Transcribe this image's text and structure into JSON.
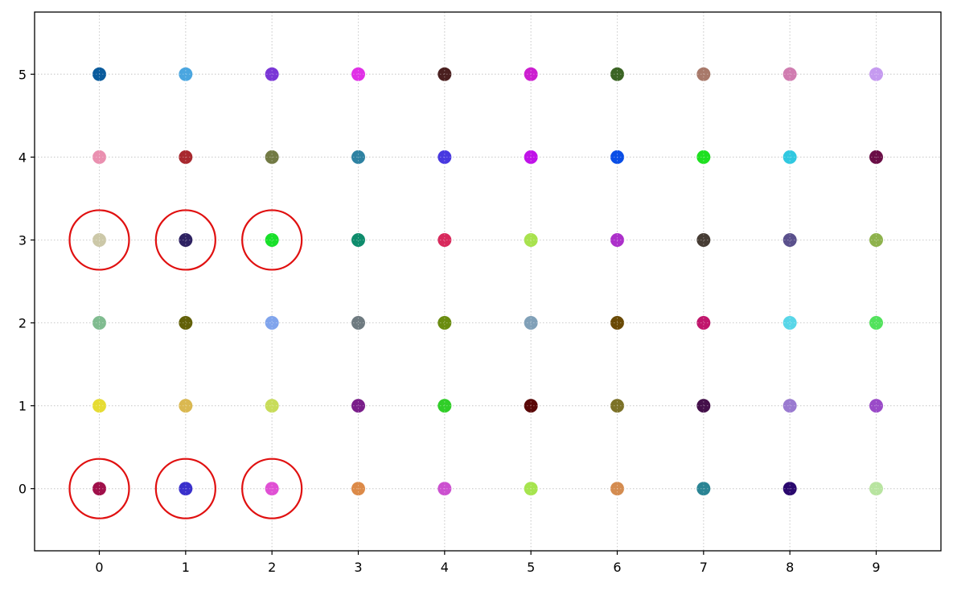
{
  "chart_data": {
    "type": "scatter",
    "title": "",
    "xlabel": "",
    "ylabel": "",
    "xlim": [
      -0.75,
      9.75
    ],
    "ylim": [
      -0.75,
      5.75
    ],
    "grid": true,
    "grid_style": "dotted",
    "x_ticks": [
      "0",
      "1",
      "2",
      "3",
      "4",
      "5",
      "6",
      "7",
      "8",
      "9"
    ],
    "y_ticks": [
      "0",
      "1",
      "2",
      "3",
      "4",
      "5"
    ],
    "highlight_color": "#e01010",
    "highlighted_points": [
      {
        "x": 0,
        "y": 3
      },
      {
        "x": 1,
        "y": 3
      },
      {
        "x": 2,
        "y": 3
      },
      {
        "x": 0,
        "y": 0
      },
      {
        "x": 1,
        "y": 0
      },
      {
        "x": 2,
        "y": 0
      }
    ],
    "rows": [
      {
        "y": 5,
        "colors": [
          "#0a5b9c",
          "#4aa6e0",
          "#7a36d6",
          "#e030e6",
          "#4a1f1f",
          "#cc1ed0",
          "#3b6424",
          "#a8796a",
          "#d07cb0",
          "#c59af0"
        ]
      },
      {
        "y": 4,
        "colors": [
          "#ea90b0",
          "#a8282e",
          "#727a44",
          "#2e82a2",
          "#4838e0",
          "#c012e8",
          "#0a4ee6",
          "#1ee020",
          "#30c8e0",
          "#6a0e46"
        ]
      },
      {
        "y": 3,
        "colors": [
          "#ccc8a8",
          "#2e2262",
          "#18e02a",
          "#0e8c6c",
          "#d8295c",
          "#a8e24e",
          "#ac30ca",
          "#463c34",
          "#5a508c",
          "#8eb24c"
        ]
      },
      {
        "y": 2,
        "colors": [
          "#80bc90",
          "#626008",
          "#80a4ec",
          "#6e7a80",
          "#6a8c10",
          "#80a0b8",
          "#6a4a06",
          "#c0166c",
          "#58d6e8",
          "#52e25c"
        ]
      },
      {
        "y": 1,
        "colors": [
          "#e6dc34",
          "#dab850",
          "#c8dc5a",
          "#7a1e8a",
          "#30ce28",
          "#5a0808",
          "#7c7228",
          "#44104a",
          "#9a7ad0",
          "#9a4ac8"
        ]
      },
      {
        "y": 0,
        "colors": [
          "#a0104a",
          "#3a30cc",
          "#e050d4",
          "#dc8a48",
          "#cc50d0",
          "#a6e44e",
          "#d48c50",
          "#2a8494",
          "#2a086e",
          "#b8e4a0"
        ]
      }
    ]
  }
}
